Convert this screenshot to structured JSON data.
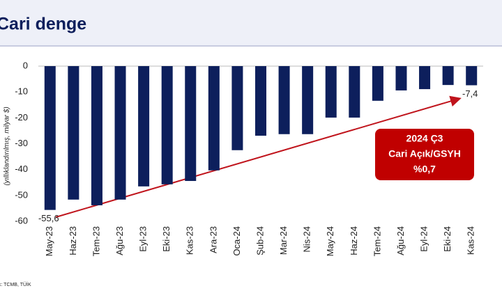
{
  "chart_data": {
    "type": "bar",
    "title": "Cari denge",
    "y_label": "(yıllıklandırılmış, milyar $)",
    "categories": [
      "May-23",
      "Haz-23",
      "Tem-23",
      "Ağu-23",
      "Eyl-23",
      "Eki-23",
      "Kas-23",
      "Ara-23",
      "Oca-24",
      "Şub-24",
      "Mar-24",
      "Nis-24",
      "May-24",
      "Haz-24",
      "Tem-24",
      "Ağu-24",
      "Eyl-24",
      "Eki-24",
      "Kas-24"
    ],
    "values": [
      -55.6,
      -51.6,
      -53.8,
      -51.6,
      -46.5,
      -45.7,
      -44.4,
      -40.3,
      -32.5,
      -26.9,
      -26.3,
      -26.3,
      -19.9,
      -19.9,
      -13.4,
      -9.4,
      -8.9,
      -7.3,
      -7.4
    ],
    "value_labels": [
      "-55,6",
      null,
      null,
      null,
      null,
      null,
      null,
      null,
      null,
      null,
      null,
      null,
      null,
      null,
      null,
      null,
      null,
      null,
      "-7,4"
    ],
    "color": "#0d1f5c",
    "ylim": [
      -60,
      0
    ],
    "yticks": [
      0,
      -10,
      -20,
      -30,
      -40,
      -50,
      -60
    ],
    "grid": false,
    "annotation": [
      "2024 Ç3",
      "Cari Açık/GSYH",
      "%0,7"
    ],
    "source": "Kaynak: TCMB, TÜİK"
  }
}
